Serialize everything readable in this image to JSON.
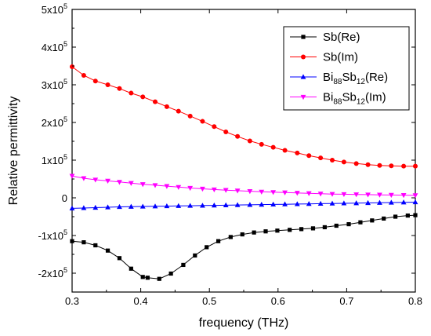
{
  "chart_data": {
    "type": "line",
    "xlabel": "frequency (THz)",
    "ylabel": "Relative permittivity",
    "xlim": [
      0.3,
      0.8
    ],
    "ylim": [
      -250000,
      500000
    ],
    "xticks": [
      0.3,
      0.4,
      0.5,
      0.6,
      0.7,
      0.8
    ],
    "xtick_labels": [
      "0.3",
      "0.4",
      "0.5",
      "0.6",
      "0.7",
      "0.8"
    ],
    "yticks": [
      {
        "value": -200000,
        "mant": "-2x10",
        "exp": "5"
      },
      {
        "value": -100000,
        "mant": "-1x10",
        "exp": "5"
      },
      {
        "value": 0,
        "mant": "0",
        "exp": ""
      },
      {
        "value": 100000,
        "mant": "1x10",
        "exp": "5"
      },
      {
        "value": 200000,
        "mant": "2x10",
        "exp": "5"
      },
      {
        "value": 300000,
        "mant": "3x10",
        "exp": "5"
      },
      {
        "value": 400000,
        "mant": "4x10",
        "exp": "5"
      },
      {
        "value": 500000,
        "mant": "5x10",
        "exp": "5"
      }
    ],
    "grid": false,
    "legend_position": "top-right",
    "series": [
      {
        "name": "Sb(Re)",
        "legend_parts": [
          [
            "Sb(Re)",
            ""
          ]
        ],
        "color": "#000000",
        "marker": "square",
        "x": [
          0.3,
          0.317,
          0.334,
          0.352,
          0.369,
          0.386,
          0.403,
          0.41,
          0.427,
          0.444,
          0.462,
          0.479,
          0.496,
          0.513,
          0.531,
          0.548,
          0.565,
          0.582,
          0.599,
          0.617,
          0.634,
          0.651,
          0.668,
          0.685,
          0.703,
          0.72,
          0.737,
          0.754,
          0.771,
          0.789,
          0.8
        ],
        "y": [
          -115000,
          -118000,
          -126000,
          -140000,
          -160000,
          -188000,
          -210000,
          -212000,
          -215000,
          -201000,
          -178000,
          -153000,
          -131000,
          -115000,
          -104000,
          -97000,
          -92000,
          -89000,
          -87000,
          -85000,
          -83000,
          -81000,
          -78000,
          -74000,
          -70000,
          -65000,
          -60000,
          -55000,
          -50000,
          -47000,
          -46000
        ]
      },
      {
        "name": "Sb(Im)",
        "legend_parts": [
          [
            "Sb(Im)",
            ""
          ]
        ],
        "color": "#ff0000",
        "marker": "circle",
        "x": [
          0.3,
          0.317,
          0.334,
          0.352,
          0.369,
          0.386,
          0.403,
          0.421,
          0.438,
          0.455,
          0.472,
          0.49,
          0.507,
          0.524,
          0.541,
          0.559,
          0.576,
          0.593,
          0.61,
          0.628,
          0.645,
          0.662,
          0.679,
          0.696,
          0.714,
          0.731,
          0.748,
          0.765,
          0.783,
          0.8
        ],
        "y": [
          348000,
          325000,
          310000,
          300000,
          290000,
          278000,
          268000,
          255000,
          242000,
          230000,
          217000,
          203000,
          189000,
          175000,
          163000,
          151000,
          142000,
          134000,
          126000,
          119000,
          112000,
          106000,
          100000,
          95000,
          91000,
          88000,
          86000,
          85000,
          84000,
          84000
        ]
      },
      {
        "name": "Bi88Sb12(Re)",
        "legend_parts": [
          [
            "Bi",
            ""
          ],
          [
            "88",
            "sub"
          ],
          [
            "Sb",
            ""
          ],
          [
            "12",
            "sub"
          ],
          [
            "(Re)",
            ""
          ]
        ],
        "color": "#0000ff",
        "marker": "triangle-up",
        "x": [
          0.3,
          0.317,
          0.334,
          0.352,
          0.369,
          0.386,
          0.403,
          0.421,
          0.438,
          0.455,
          0.472,
          0.49,
          0.507,
          0.524,
          0.541,
          0.559,
          0.576,
          0.593,
          0.61,
          0.628,
          0.645,
          0.662,
          0.679,
          0.696,
          0.714,
          0.731,
          0.748,
          0.765,
          0.783,
          0.8
        ],
        "y": [
          -28000,
          -27000,
          -26000,
          -25000,
          -24000,
          -23500,
          -23000,
          -22500,
          -22000,
          -21500,
          -21000,
          -20500,
          -20000,
          -19500,
          -19000,
          -18500,
          -18000,
          -17500,
          -17000,
          -16500,
          -16000,
          -15500,
          -15000,
          -14500,
          -14000,
          -13500,
          -13000,
          -12500,
          -12000,
          -11500
        ]
      },
      {
        "name": "Bi88Sb12(Im)",
        "legend_parts": [
          [
            "Bi",
            ""
          ],
          [
            "88",
            "sub"
          ],
          [
            "Sb",
            ""
          ],
          [
            "12",
            "sub"
          ],
          [
            "(Im)",
            ""
          ]
        ],
        "color": "#ff00ff",
        "marker": "triangle-down",
        "x": [
          0.3,
          0.317,
          0.334,
          0.352,
          0.369,
          0.386,
          0.403,
          0.421,
          0.438,
          0.455,
          0.472,
          0.49,
          0.507,
          0.524,
          0.541,
          0.559,
          0.576,
          0.593,
          0.61,
          0.628,
          0.645,
          0.662,
          0.679,
          0.696,
          0.714,
          0.731,
          0.748,
          0.765,
          0.783,
          0.8
        ],
        "y": [
          58000,
          52000,
          48000,
          45000,
          42000,
          39000,
          36000,
          33500,
          31000,
          28500,
          26000,
          24000,
          22000,
          20500,
          19000,
          17500,
          16000,
          15000,
          14000,
          13000,
          12000,
          11000,
          10000,
          9500,
          9000,
          8500,
          8000,
          7500,
          7000,
          6500
        ]
      }
    ]
  }
}
